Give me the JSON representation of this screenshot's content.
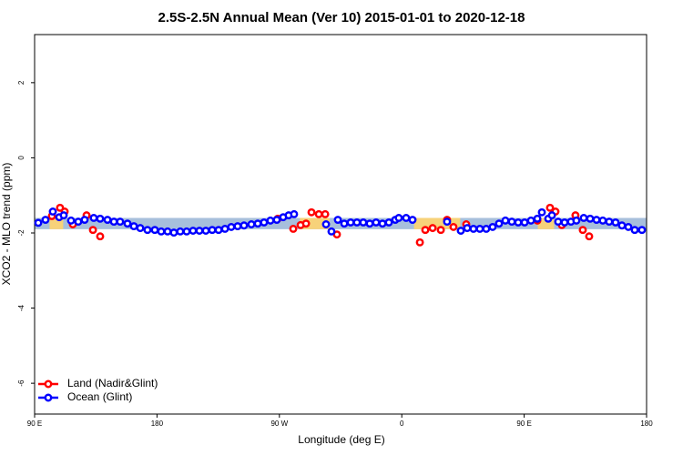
{
  "chart_data": {
    "type": "scatter",
    "title": "2.5S-2.5N Annual Mean (Ver 10)   2015-01-01 to 2020-12-18",
    "x_label": "Longitude (deg E)",
    "y_label": "XCO2 - MLO trend (ppm)",
    "xlim": [
      90,
      540
    ],
    "ylim": [
      -6.82,
      3.28
    ],
    "xticks": [
      {
        "value": 90,
        "label": "90 E"
      },
      180,
      {
        "value": 270,
        "label": "90 W"
      },
      {
        "value": 360,
        "label": "0"
      },
      {
        "value": 450,
        "label": "90 E"
      },
      {
        "value": 540,
        "label": "180"
      }
    ],
    "yticks": [
      -6,
      -4,
      -2,
      0,
      2
    ],
    "legend": "bottom-left",
    "band": {
      "lower": -1.9,
      "upper": -1.6,
      "color": "#a7bfdc"
    },
    "land_bands": {
      "color": "#f7d27a",
      "ranges": [
        [
          101,
          111
        ],
        [
          285,
          307
        ],
        [
          369,
          403
        ],
        [
          460,
          472
        ]
      ]
    },
    "series": [
      {
        "name": "Land (Nadir&Glint)",
        "color": "#ff0000",
        "x": [
          102.7,
          108.7,
          112.1,
          118.1,
          128.2,
          132.9,
          138.2,
          268.8,
          280.2,
          285.6,
          289.6,
          293.6,
          299.0,
          303.7,
          312.3,
          373.3,
          377.3,
          382.7,
          388.7,
          393.3,
          398.0,
          407.4,
          459.7,
          469.0,
          473.0,
          477.7,
          487.7,
          493.1,
          497.8
        ],
        "values": [
          -1.55,
          -1.33,
          -1.43,
          -1.77,
          -1.53,
          -1.92,
          -2.09,
          -1.62,
          -1.89,
          -1.79,
          -1.75,
          -1.45,
          -1.5,
          -1.5,
          -2.04,
          -2.25,
          -1.92,
          -1.87,
          -1.92,
          -1.65,
          -1.84,
          -1.77,
          -1.67,
          -1.33,
          -1.43,
          -1.79,
          -1.53,
          -1.92,
          -2.09
        ]
      },
      {
        "name": "Ocean (Glint)",
        "color": "#0000ff",
        "x": [
          92.7,
          98.0,
          103.4,
          108.1,
          111.4,
          116.8,
          122.1,
          126.8,
          133.5,
          138.2,
          143.6,
          148.3,
          152.9,
          158.3,
          163.0,
          167.7,
          173.0,
          178.4,
          183.1,
          187.8,
          192.4,
          197.1,
          201.8,
          206.5,
          211.2,
          215.9,
          220.6,
          225.3,
          230.0,
          234.6,
          239.3,
          244.0,
          249.4,
          254.1,
          258.7,
          263.4,
          268.1,
          272.8,
          276.8,
          280.8,
          304.3,
          308.3,
          313.0,
          317.7,
          322.4,
          327.0,
          331.7,
          336.4,
          341.1,
          345.8,
          350.5,
          355.2,
          357.8,
          363.2,
          367.9,
          393.3,
          403.4,
          408.1,
          412.7,
          417.4,
          422.1,
          426.8,
          431.5,
          436.2,
          440.9,
          445.6,
          450.3,
          455.0,
          459.7,
          463.0,
          467.7,
          470.4,
          475.0,
          479.7,
          484.4,
          488.4,
          493.8,
          498.5,
          503.2,
          507.8,
          512.5,
          517.2,
          521.9,
          526.6,
          531.3,
          536.6
        ],
        "values": [
          -1.73,
          -1.65,
          -1.43,
          -1.58,
          -1.53,
          -1.67,
          -1.7,
          -1.65,
          -1.6,
          -1.62,
          -1.65,
          -1.7,
          -1.7,
          -1.75,
          -1.82,
          -1.87,
          -1.92,
          -1.92,
          -1.96,
          -1.96,
          -1.99,
          -1.96,
          -1.96,
          -1.94,
          -1.94,
          -1.94,
          -1.92,
          -1.92,
          -1.89,
          -1.84,
          -1.82,
          -1.8,
          -1.77,
          -1.75,
          -1.72,
          -1.67,
          -1.65,
          -1.58,
          -1.53,
          -1.5,
          -1.77,
          -1.96,
          -1.65,
          -1.75,
          -1.72,
          -1.72,
          -1.72,
          -1.75,
          -1.72,
          -1.75,
          -1.72,
          -1.65,
          -1.6,
          -1.6,
          -1.65,
          -1.7,
          -1.94,
          -1.87,
          -1.89,
          -1.89,
          -1.89,
          -1.84,
          -1.75,
          -1.67,
          -1.7,
          -1.72,
          -1.72,
          -1.67,
          -1.62,
          -1.45,
          -1.62,
          -1.53,
          -1.7,
          -1.72,
          -1.7,
          -1.67,
          -1.6,
          -1.62,
          -1.65,
          -1.67,
          -1.7,
          -1.72,
          -1.8,
          -1.84,
          -1.92,
          -1.92
        ]
      }
    ]
  }
}
